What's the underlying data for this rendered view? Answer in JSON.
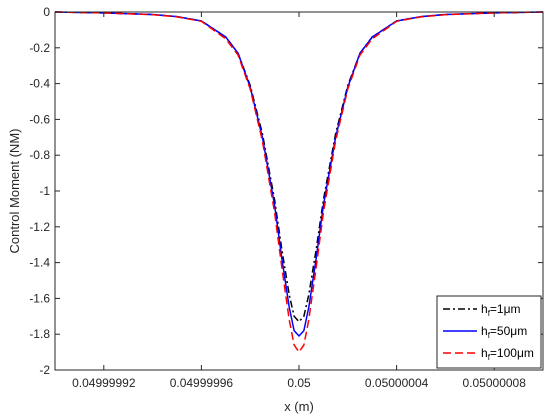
{
  "chart_data": {
    "type": "line",
    "title": "",
    "xlabel": "x (m)",
    "ylabel": "Control Moment (NM)",
    "xlim": [
      0.0499999,
      0.0500001
    ],
    "ylim": [
      -2,
      0
    ],
    "x_ticks": [
      0.04999992,
      0.04999996,
      0.05,
      0.05000004,
      0.05000008
    ],
    "x_tick_labels": [
      "0.04999992",
      "0.04999996",
      "0.05",
      "0.05000004",
      "0.05000008"
    ],
    "y_ticks": [
      0,
      -0.2,
      -0.4,
      -0.6,
      -0.8,
      -1,
      -1.2,
      -1.4,
      -1.6,
      -1.8,
      -2
    ],
    "y_tick_labels": [
      "0",
      "-0.2",
      "-0.4",
      "-0.6",
      "-0.8",
      "-1",
      "-1.2",
      "-1.4",
      "-1.6",
      "-1.8",
      "-2"
    ],
    "grid": false,
    "legend_position": "bottom-right",
    "series": [
      {
        "name": "h_f=1μm",
        "legend_main": "h",
        "legend_sub": "f",
        "legend_rest": "=1μm",
        "color": "#000000",
        "dash": "dashdot",
        "x": [
          0.0499999,
          0.04999992,
          0.04999994,
          0.04999995,
          0.04999996,
          0.04999997,
          0.049999975,
          0.04999998,
          0.049999985,
          0.04999999,
          0.049999993,
          0.049999996,
          0.049999998,
          0.05,
          0.050000002,
          0.050000004,
          0.050000007,
          0.05000001,
          0.050000015,
          0.05000002,
          0.050000025,
          0.05000003,
          0.05000004,
          0.05000005,
          0.05000006,
          0.05000008,
          0.0500001
        ],
        "y": [
          0,
          -0.005,
          -0.014,
          -0.026,
          -0.05,
          -0.14,
          -0.23,
          -0.41,
          -0.68,
          -1.05,
          -1.33,
          -1.58,
          -1.7,
          -1.73,
          -1.7,
          -1.58,
          -1.33,
          -1.05,
          -0.68,
          -0.41,
          -0.23,
          -0.14,
          -0.05,
          -0.026,
          -0.014,
          -0.005,
          0
        ]
      },
      {
        "name": "h_f=50μm",
        "legend_main": "h",
        "legend_sub": "f",
        "legend_rest": "=50μm",
        "color": "#0000ff",
        "dash": "solid",
        "x": [
          0.0499999,
          0.04999992,
          0.04999994,
          0.04999995,
          0.04999996,
          0.04999997,
          0.049999975,
          0.04999998,
          0.049999985,
          0.04999999,
          0.049999993,
          0.049999996,
          0.049999998,
          0.05,
          0.050000002,
          0.050000004,
          0.050000007,
          0.05000001,
          0.050000015,
          0.05000002,
          0.050000025,
          0.05000003,
          0.05000004,
          0.05000005,
          0.05000006,
          0.05000008,
          0.0500001
        ],
        "y": [
          0,
          -0.005,
          -0.014,
          -0.026,
          -0.05,
          -0.14,
          -0.23,
          -0.42,
          -0.7,
          -1.08,
          -1.38,
          -1.65,
          -1.78,
          -1.81,
          -1.78,
          -1.65,
          -1.38,
          -1.08,
          -0.7,
          -0.42,
          -0.23,
          -0.14,
          -0.05,
          -0.026,
          -0.014,
          -0.005,
          0
        ]
      },
      {
        "name": "h_f=100μm",
        "legend_main": "h",
        "legend_sub": "f",
        "legend_rest": "=100μm",
        "color": "#ff0000",
        "dash": "dashed",
        "x": [
          0.0499999,
          0.04999992,
          0.04999994,
          0.04999995,
          0.04999996,
          0.04999997,
          0.049999975,
          0.04999998,
          0.049999985,
          0.04999999,
          0.049999993,
          0.049999996,
          0.049999998,
          0.05,
          0.050000002,
          0.050000004,
          0.050000007,
          0.05000001,
          0.050000015,
          0.05000002,
          0.050000025,
          0.05000003,
          0.05000004,
          0.05000005,
          0.05000006,
          0.05000008,
          0.0500001
        ],
        "y": [
          0,
          -0.005,
          -0.015,
          -0.027,
          -0.052,
          -0.15,
          -0.24,
          -0.43,
          -0.72,
          -1.12,
          -1.43,
          -1.72,
          -1.86,
          -1.9,
          -1.86,
          -1.72,
          -1.43,
          -1.12,
          -0.72,
          -0.43,
          -0.24,
          -0.15,
          -0.052,
          -0.027,
          -0.015,
          -0.005,
          0
        ]
      }
    ]
  }
}
